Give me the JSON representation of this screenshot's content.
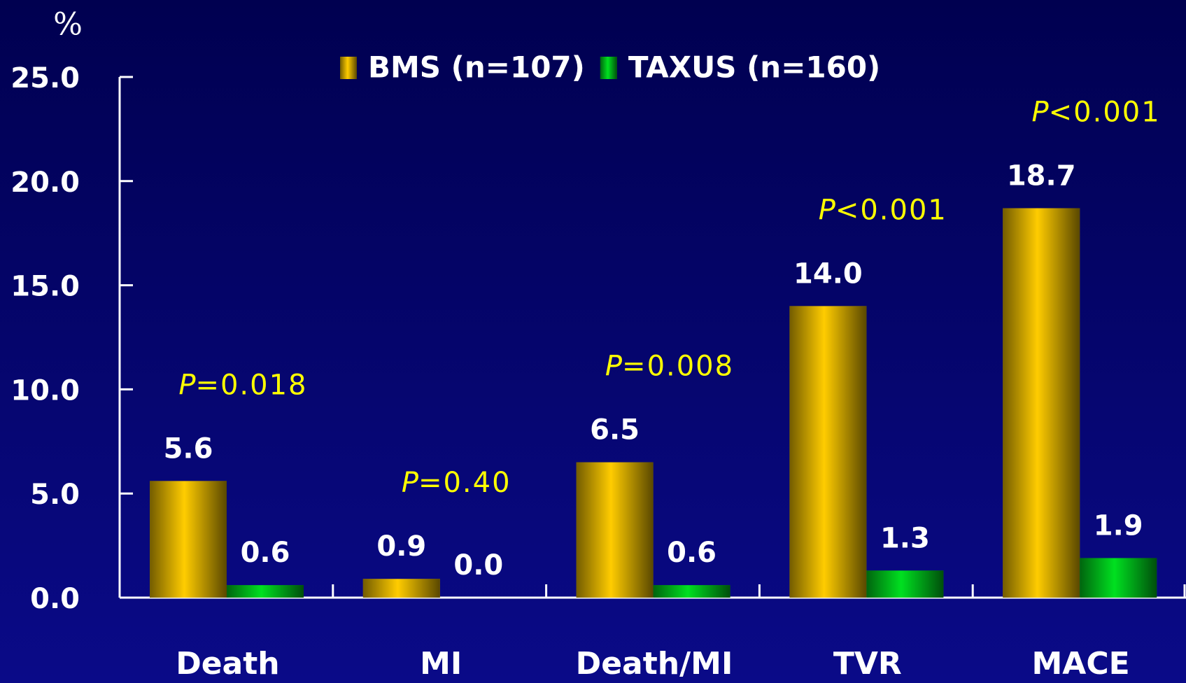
{
  "chart_data": {
    "type": "bar",
    "y_unit_label": "%",
    "categories": [
      "Death",
      "MI",
      "Death/MI",
      "TVR",
      "MACE"
    ],
    "series": [
      {
        "name": "BMS (n=107)",
        "color": "#ffcc00",
        "values": [
          5.6,
          0.9,
          6.5,
          14.0,
          18.7
        ],
        "value_labels": [
          "5.6",
          "0.9",
          "6.5",
          "14.0",
          "18.7"
        ]
      },
      {
        "name": "TAXUS (n=160)",
        "color": "#00e020",
        "values": [
          0.6,
          0.0,
          0.6,
          1.3,
          1.9
        ],
        "value_labels": [
          "0.6",
          "0.0",
          "0.6",
          "1.3",
          "1.9"
        ]
      }
    ],
    "p_values": [
      "P=0.018",
      "P=0.40",
      "P=0.008",
      "P<0.001",
      "P<0.001"
    ],
    "ylim": [
      0,
      25
    ],
    "yticks": [
      {
        "value": 0,
        "label": "0.0"
      },
      {
        "value": 5,
        "label": "5.0"
      },
      {
        "value": 10,
        "label": "10.0"
      },
      {
        "value": 15,
        "label": "15.0"
      },
      {
        "value": 20,
        "label": "20.0"
      },
      {
        "value": 25,
        "label": "25.0"
      }
    ]
  }
}
